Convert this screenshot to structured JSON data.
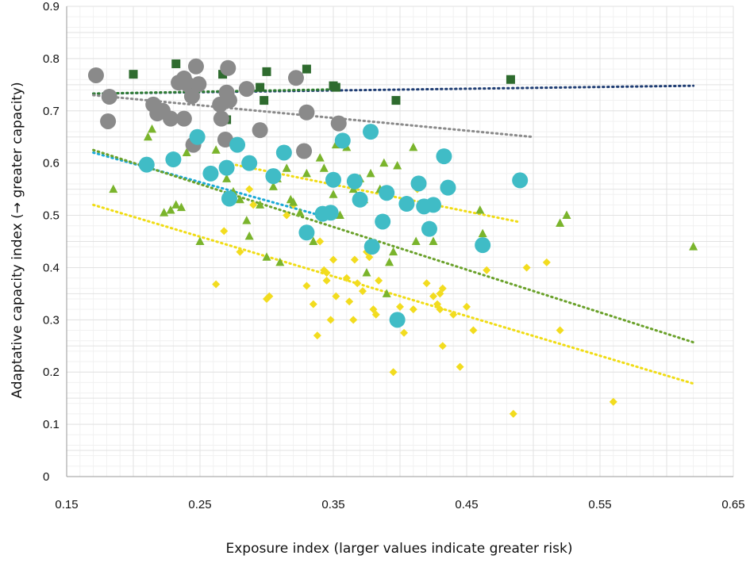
{
  "chart_data": {
    "type": "scatter",
    "title": "",
    "xlabel": "Exposure index (larger values indicate greater risk)",
    "ylabel": "Adaptative capacity index (→ greater capacity)",
    "xlim": [
      0.15,
      0.65
    ],
    "ylim": [
      0,
      0.9
    ],
    "x_ticks": [
      "0.15",
      "0.25",
      "0.35",
      "0.45",
      "0.55",
      "0.65"
    ],
    "y_ticks": [
      "0",
      "0.1",
      "0.2",
      "0.3",
      "0.4",
      "0.5",
      "0.6",
      "0.7",
      "0.8",
      "0.9"
    ],
    "grid": true,
    "minor_grid": true,
    "legend": "none",
    "series": [
      {
        "marker": "square",
        "color": "#2e6b2e",
        "trend": {
          "x": [
            0.17,
            0.62
          ],
          "y": [
            0.733,
            0.748
          ],
          "color": "#1f3d73"
        },
        "trend2": {
          "x": [
            0.17,
            0.35
          ],
          "y": [
            0.733,
            0.741
          ],
          "color": "#2e7d32"
        },
        "points": [
          [
            0.2,
            0.77
          ],
          [
            0.232,
            0.79
          ],
          [
            0.267,
            0.77
          ],
          [
            0.3,
            0.775
          ],
          [
            0.33,
            0.78
          ],
          [
            0.295,
            0.745
          ],
          [
            0.298,
            0.72
          ],
          [
            0.35,
            0.748
          ],
          [
            0.352,
            0.745
          ],
          [
            0.397,
            0.72
          ],
          [
            0.483,
            0.76
          ],
          [
            0.27,
            0.683
          ]
        ]
      },
      {
        "marker": "circle",
        "color": "#8a8a8a",
        "trend": {
          "x": [
            0.17,
            0.5
          ],
          "y": [
            0.73,
            0.65
          ],
          "color": "#8a8a8a"
        },
        "points": [
          [
            0.172,
            0.768
          ],
          [
            0.182,
            0.727
          ],
          [
            0.181,
            0.68
          ],
          [
            0.215,
            0.712
          ],
          [
            0.218,
            0.695
          ],
          [
            0.222,
            0.7
          ],
          [
            0.228,
            0.685
          ],
          [
            0.234,
            0.754
          ],
          [
            0.238,
            0.762
          ],
          [
            0.241,
            0.75
          ],
          [
            0.238,
            0.685
          ],
          [
            0.244,
            0.728
          ],
          [
            0.247,
            0.785
          ],
          [
            0.249,
            0.751
          ],
          [
            0.245,
            0.635
          ],
          [
            0.265,
            0.712
          ],
          [
            0.27,
            0.735
          ],
          [
            0.272,
            0.72
          ],
          [
            0.266,
            0.685
          ],
          [
            0.271,
            0.782
          ],
          [
            0.269,
            0.645
          ],
          [
            0.285,
            0.742
          ],
          [
            0.295,
            0.663
          ],
          [
            0.322,
            0.763
          ],
          [
            0.33,
            0.697
          ],
          [
            0.328,
            0.623
          ],
          [
            0.354,
            0.676
          ]
        ]
      },
      {
        "marker": "circle",
        "color": "#40bcc6",
        "trend": {
          "x": [
            0.17,
            0.34
          ],
          "y": [
            0.62,
            0.5
          ],
          "color": "#1aa9d6"
        },
        "points": [
          [
            0.21,
            0.597
          ],
          [
            0.23,
            0.607
          ],
          [
            0.248,
            0.65
          ],
          [
            0.258,
            0.58
          ],
          [
            0.27,
            0.591
          ],
          [
            0.272,
            0.532
          ],
          [
            0.278,
            0.635
          ],
          [
            0.287,
            0.6
          ],
          [
            0.305,
            0.575
          ],
          [
            0.313,
            0.62
          ],
          [
            0.33,
            0.467
          ],
          [
            0.342,
            0.503
          ],
          [
            0.348,
            0.505
          ],
          [
            0.35,
            0.568
          ],
          [
            0.357,
            0.643
          ],
          [
            0.366,
            0.565
          ],
          [
            0.37,
            0.53
          ],
          [
            0.378,
            0.66
          ],
          [
            0.379,
            0.44
          ],
          [
            0.387,
            0.488
          ],
          [
            0.39,
            0.543
          ],
          [
            0.398,
            0.3
          ],
          [
            0.405,
            0.522
          ],
          [
            0.414,
            0.561
          ],
          [
            0.418,
            0.517
          ],
          [
            0.422,
            0.474
          ],
          [
            0.425,
            0.52
          ],
          [
            0.433,
            0.613
          ],
          [
            0.436,
            0.553
          ],
          [
            0.462,
            0.443
          ],
          [
            0.49,
            0.567
          ]
        ]
      },
      {
        "marker": "triangle",
        "color": "#7ab42c",
        "trend": {
          "x": [
            0.17,
            0.62
          ],
          "y": [
            0.625,
            0.257
          ],
          "color": "#6aa12a"
        },
        "points": [
          [
            0.185,
            0.55
          ],
          [
            0.211,
            0.65
          ],
          [
            0.214,
            0.665
          ],
          [
            0.223,
            0.505
          ],
          [
            0.228,
            0.51
          ],
          [
            0.232,
            0.52
          ],
          [
            0.236,
            0.515
          ],
          [
            0.24,
            0.62
          ],
          [
            0.243,
            0.63
          ],
          [
            0.25,
            0.45
          ],
          [
            0.262,
            0.625
          ],
          [
            0.27,
            0.57
          ],
          [
            0.275,
            0.545
          ],
          [
            0.28,
            0.53
          ],
          [
            0.285,
            0.49
          ],
          [
            0.287,
            0.46
          ],
          [
            0.295,
            0.52
          ],
          [
            0.3,
            0.42
          ],
          [
            0.305,
            0.555
          ],
          [
            0.308,
            0.57
          ],
          [
            0.31,
            0.41
          ],
          [
            0.315,
            0.59
          ],
          [
            0.318,
            0.53
          ],
          [
            0.32,
            0.525
          ],
          [
            0.325,
            0.505
          ],
          [
            0.33,
            0.58
          ],
          [
            0.335,
            0.45
          ],
          [
            0.34,
            0.61
          ],
          [
            0.343,
            0.59
          ],
          [
            0.35,
            0.54
          ],
          [
            0.352,
            0.635
          ],
          [
            0.355,
            0.5
          ],
          [
            0.36,
            0.63
          ],
          [
            0.365,
            0.55
          ],
          [
            0.37,
            0.57
          ],
          [
            0.373,
            0.53
          ],
          [
            0.375,
            0.39
          ],
          [
            0.378,
            0.58
          ],
          [
            0.385,
            0.55
          ],
          [
            0.388,
            0.6
          ],
          [
            0.39,
            0.35
          ],
          [
            0.392,
            0.41
          ],
          [
            0.395,
            0.43
          ],
          [
            0.398,
            0.595
          ],
          [
            0.41,
            0.63
          ],
          [
            0.412,
            0.45
          ],
          [
            0.425,
            0.45
          ],
          [
            0.46,
            0.51
          ],
          [
            0.462,
            0.465
          ],
          [
            0.52,
            0.485
          ],
          [
            0.525,
            0.5
          ],
          [
            0.62,
            0.44
          ]
        ]
      },
      {
        "marker": "diamond",
        "color": "#f2dc1f",
        "trend": {
          "x": [
            0.17,
            0.62
          ],
          "y": [
            0.52,
            0.178
          ],
          "color": "#f0dc14"
        },
        "trend2": {
          "x": [
            0.27,
            0.49
          ],
          "y": [
            0.6,
            0.487
          ],
          "color": "#f0dc14"
        },
        "points": [
          [
            0.262,
            0.368
          ],
          [
            0.268,
            0.47
          ],
          [
            0.28,
            0.43
          ],
          [
            0.287,
            0.55
          ],
          [
            0.29,
            0.52
          ],
          [
            0.3,
            0.34
          ],
          [
            0.302,
            0.345
          ],
          [
            0.315,
            0.5
          ],
          [
            0.32,
            0.52
          ],
          [
            0.33,
            0.365
          ],
          [
            0.335,
            0.33
          ],
          [
            0.338,
            0.27
          ],
          [
            0.34,
            0.45
          ],
          [
            0.343,
            0.395
          ],
          [
            0.345,
            0.39
          ],
          [
            0.345,
            0.375
          ],
          [
            0.348,
            0.3
          ],
          [
            0.35,
            0.415
          ],
          [
            0.352,
            0.345
          ],
          [
            0.36,
            0.38
          ],
          [
            0.362,
            0.335
          ],
          [
            0.365,
            0.3
          ],
          [
            0.366,
            0.415
          ],
          [
            0.368,
            0.37
          ],
          [
            0.372,
            0.355
          ],
          [
            0.375,
            0.43
          ],
          [
            0.377,
            0.42
          ],
          [
            0.38,
            0.32
          ],
          [
            0.382,
            0.31
          ],
          [
            0.384,
            0.375
          ],
          [
            0.395,
            0.2
          ],
          [
            0.4,
            0.325
          ],
          [
            0.403,
            0.275
          ],
          [
            0.41,
            0.32
          ],
          [
            0.413,
            0.55
          ],
          [
            0.42,
            0.37
          ],
          [
            0.425,
            0.345
          ],
          [
            0.43,
            0.35
          ],
          [
            0.432,
            0.36
          ],
          [
            0.428,
            0.33
          ],
          [
            0.43,
            0.32
          ],
          [
            0.432,
            0.25
          ],
          [
            0.44,
            0.31
          ],
          [
            0.445,
            0.21
          ],
          [
            0.45,
            0.325
          ],
          [
            0.455,
            0.28
          ],
          [
            0.465,
            0.395
          ],
          [
            0.485,
            0.12
          ],
          [
            0.495,
            0.4
          ],
          [
            0.51,
            0.41
          ],
          [
            0.52,
            0.28
          ],
          [
            0.56,
            0.143
          ]
        ]
      }
    ]
  }
}
